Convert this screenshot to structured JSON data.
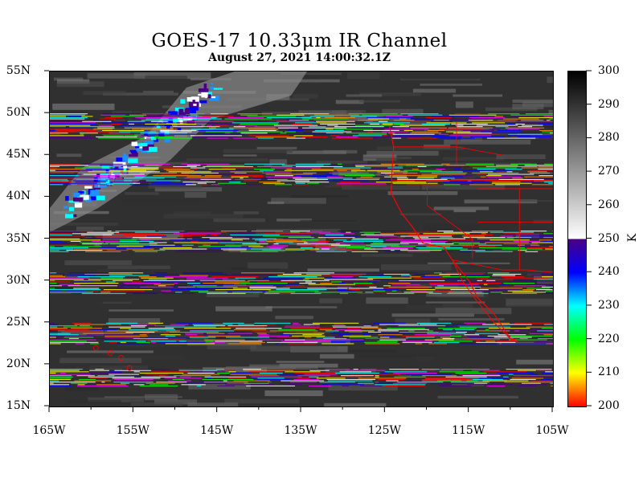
{
  "title": "GOES-17 10.33μm IR Channel",
  "subtitle": "August 27,  2021 14:00:32.1Z",
  "map": {
    "lon_range": [
      -165,
      -105
    ],
    "lat_range": [
      15,
      55
    ],
    "lat_labels": [
      "55N",
      "50N",
      "45N",
      "40N",
      "35N",
      "30N",
      "25N",
      "20N",
      "15N"
    ],
    "lat_values": [
      55,
      50,
      45,
      40,
      35,
      30,
      25,
      20,
      15
    ],
    "lon_labels": [
      "165W",
      "155W",
      "145W",
      "135W",
      "125W",
      "115W",
      "105W"
    ],
    "lon_values": [
      -165,
      -155,
      -145,
      -135,
      -125,
      -115,
      -105
    ],
    "lon_minor_values": [
      -160,
      -150,
      -140,
      -130,
      -120,
      -110
    ],
    "border_color": "#ff0000",
    "noise_bands_lat": [
      [
        47,
        50
      ],
      [
        41.5,
        44
      ],
      [
        33.5,
        36
      ],
      [
        28.5,
        31
      ],
      [
        22.5,
        25
      ],
      [
        17.5,
        19.5
      ]
    ]
  },
  "colorbar": {
    "unit": "K",
    "min": 200,
    "max": 300,
    "tick_labels": [
      "300",
      "290",
      "280",
      "270",
      "260",
      "250",
      "240",
      "230",
      "220",
      "210",
      "200"
    ],
    "tick_values": [
      300,
      290,
      280,
      270,
      260,
      250,
      240,
      230,
      220,
      210,
      200
    ],
    "gray_range": [
      250,
      300
    ],
    "color_stops": [
      "#ff0000",
      "#ffff00",
      "#00ff00",
      "#00ffff",
      "#0000ff",
      "#4b0082"
    ]
  }
}
